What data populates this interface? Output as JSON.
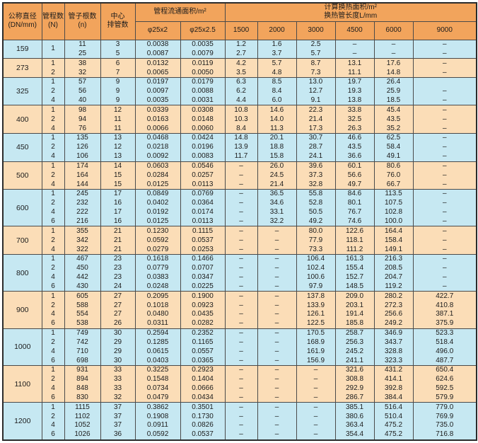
{
  "table": {
    "header": {
      "dn": "公称直径\n(DN/mm)",
      "passes": "管程数\n(N)",
      "tubes": "管子根数\n(n)",
      "center_rows": "中心\n排管数",
      "flow_area": "管程流通面积/m²",
      "d25x2": "φ25x2",
      "d25x2_5": "φ25x2.5",
      "heat_area": "计算换热面积/m²\n换热管长度L/mm",
      "lengths": [
        "1500",
        "2000",
        "3000",
        "4500",
        "6000",
        "9000"
      ]
    },
    "column_keys": [
      "tubes",
      "center-rows",
      "area-25x2",
      "area-25x2-5",
      "L1500",
      "L2000",
      "L3000",
      "L4500",
      "L6000",
      "L9000"
    ],
    "colors": {
      "header_bg": "#f2a45c",
      "row_blue": "#c6e8f2",
      "row_peach": "#fbddb7",
      "border": "#4a4a4a",
      "outer_border": "#2b2b2b"
    },
    "groups": [
      {
        "dn": "159",
        "rows": [
          {
            "pass": "1",
            "passRowspan": 2,
            "cells": [
              "11",
              "3",
              "0.0038",
              "0.0035",
              "1.2",
              "1.6",
              "2.5",
              "–",
              "–",
              "–"
            ]
          },
          {
            "pass": null,
            "cells": [
              "25",
              "5",
              "0.0087",
              "0.0079",
              "2.7",
              "3.7",
              "5.7",
              "–",
              "–",
              "–"
            ]
          }
        ]
      },
      {
        "dn": "273",
        "rows": [
          {
            "pass": "1",
            "cells": [
              "38",
              "6",
              "0.0132",
              "0.0119",
              "4.2",
              "5.7",
              "8.7",
              "13.1",
              "17.6",
              "–"
            ]
          },
          {
            "pass": "2",
            "cells": [
              "32",
              "7",
              "0.0065",
              "0.0050",
              "3.5",
              "4.8",
              "7.3",
              "11.1",
              "14.8",
              "–"
            ]
          }
        ]
      },
      {
        "dn": "325",
        "rows": [
          {
            "pass": "1",
            "cells": [
              "57",
              "9",
              "0.0197",
              "0.0179",
              "6.3",
              "8.5",
              "13.0",
              "19.7",
              "26.4",
              ""
            ]
          },
          {
            "pass": "2",
            "cells": [
              "56",
              "9",
              "0.0097",
              "0.0088",
              "6.2",
              "8.4",
              "12.7",
              "19.3",
              "25.9",
              "–"
            ]
          },
          {
            "pass": "4",
            "cells": [
              "40",
              "9",
              "0.0035",
              "0.0031",
              "4.4",
              "6.0",
              "9.1",
              "13.8",
              "18.5",
              "–"
            ]
          }
        ]
      },
      {
        "dn": "400",
        "rows": [
          {
            "pass": "1",
            "cells": [
              "98",
              "12",
              "0.0339",
              "0.0308",
              "10.8",
              "14.6",
              "22.3",
              "33.8",
              "45.4",
              "–"
            ]
          },
          {
            "pass": "2",
            "cells": [
              "94",
              "11",
              "0.0163",
              "0.0148",
              "10.3",
              "14.0",
              "21.4",
              "32.5",
              "43.5",
              "–"
            ]
          },
          {
            "pass": "4",
            "cells": [
              "76",
              "11",
              "0.0066",
              "0.0060",
              "8.4",
              "11.3",
              "17.3",
              "26.3",
              "35.2",
              "–"
            ]
          }
        ]
      },
      {
        "dn": "450",
        "rows": [
          {
            "pass": "1",
            "cells": [
              "135",
              "13",
              "0.0468",
              "0.0424",
              "14.8",
              "20.1",
              "30.7",
              "46.6",
              "62.5",
              "–"
            ]
          },
          {
            "pass": "2",
            "cells": [
              "126",
              "12",
              "0.0218",
              "0.0196",
              "13.9",
              "18.8",
              "28.7",
              "43.5",
              "58.4",
              "–"
            ]
          },
          {
            "pass": "4",
            "cells": [
              "106",
              "13",
              "0.0092",
              "0.0083",
              "11.7",
              "15.8",
              "24.1",
              "36.6",
              "49.1",
              "–"
            ]
          }
        ]
      },
      {
        "dn": "500",
        "rows": [
          {
            "pass": "1",
            "cells": [
              "174",
              "14",
              "0.0603",
              "0.0546",
              "–",
              "26.0",
              "39.6",
              "60.1",
              "80.6",
              "–"
            ]
          },
          {
            "pass": "2",
            "cells": [
              "164",
              "15",
              "0.0284",
              "0.0257",
              "–",
              "24.5",
              "37.3",
              "56.6",
              "76.0",
              "–"
            ]
          },
          {
            "pass": "4",
            "cells": [
              "144",
              "15",
              "0.0125",
              "0.0113",
              "–",
              "21.4",
              "32.8",
              "49.7",
              "66.7",
              "–"
            ]
          }
        ]
      },
      {
        "dn": "600",
        "rows": [
          {
            "pass": "1",
            "cells": [
              "245",
              "17",
              "0.0849",
              "0.0769",
              "–",
              "36.5",
              "55.8",
              "84.6",
              "113.5",
              "–"
            ]
          },
          {
            "pass": "2",
            "cells": [
              "232",
              "16",
              "0.0402",
              "0.0364",
              "–",
              "34.6",
              "52.8",
              "80.1",
              "107.5",
              "–"
            ]
          },
          {
            "pass": "4",
            "cells": [
              "222",
              "17",
              "0.0192",
              "0.0174",
              "–",
              "33.1",
              "50.5",
              "76.7",
              "102.8",
              "–"
            ]
          },
          {
            "pass": "6",
            "cells": [
              "216",
              "16",
              "0.0125",
              "0.0113",
              "–",
              "32.2",
              "49.2",
              "74.6",
              "100.0",
              "–"
            ]
          }
        ]
      },
      {
        "dn": "700",
        "rows": [
          {
            "pass": "1",
            "cells": [
              "355",
              "21",
              "0.1230",
              "0.1115",
              "–",
              "–",
              "80.0",
              "122.6",
              "164.4",
              "–"
            ]
          },
          {
            "pass": "2",
            "cells": [
              "342",
              "21",
              "0.0592",
              "0.0537",
              "–",
              "–",
              "77.9",
              "118.1",
              "158.4",
              "–"
            ]
          },
          {
            "pass": "4",
            "cells": [
              "322",
              "21",
              "0.0279",
              "0.0253",
              "–",
              "–",
              "73.3",
              "111.2",
              "149.1",
              "–"
            ]
          }
        ]
      },
      {
        "dn": "800",
        "rows": [
          {
            "pass": "1",
            "cells": [
              "467",
              "23",
              "0.1618",
              "0.1466",
              "–",
              "–",
              "106.4",
              "161.3",
              "216.3",
              "–"
            ]
          },
          {
            "pass": "2",
            "cells": [
              "450",
              "23",
              "0.0779",
              "0.0707",
              "–",
              "–",
              "102.4",
              "155.4",
              "208.5",
              "–"
            ]
          },
          {
            "pass": "4",
            "cells": [
              "442",
              "23",
              "0.0383",
              "0.0347",
              "–",
              "–",
              "100.6",
              "152.7",
              "204.7",
              "–"
            ]
          },
          {
            "pass": "6",
            "cells": [
              "430",
              "24",
              "0.0248",
              "0.0225",
              "–",
              "–",
              "97.9",
              "148.5",
              "119.2",
              "–"
            ]
          }
        ]
      },
      {
        "dn": "900",
        "rows": [
          {
            "pass": "1",
            "cells": [
              "605",
              "27",
              "0.2095",
              "0.1900",
              "–",
              "–",
              "137.8",
              "209.0",
              "280.2",
              "422.7"
            ]
          },
          {
            "pass": "2",
            "cells": [
              "588",
              "27",
              "0.1018",
              "0.0923",
              "–",
              "–",
              "133.9",
              "203.1",
              "272.3",
              "410.8"
            ]
          },
          {
            "pass": "4",
            "cells": [
              "554",
              "27",
              "0.0480",
              "0.0435",
              "–",
              "–",
              "126.1",
              "191.4",
              "256.6",
              "387.1"
            ]
          },
          {
            "pass": "6",
            "cells": [
              "538",
              "26",
              "0.0311",
              "0.0282",
              "–",
              "–",
              "122.5",
              "185.8",
              "249.2",
              "375.9"
            ]
          }
        ]
      },
      {
        "dn": "1000",
        "rows": [
          {
            "pass": "1",
            "cells": [
              "749",
              "30",
              "0.2594",
              "0.2352",
              "–",
              "–",
              "170.5",
              "258.7",
              "346.9",
              "523.3"
            ]
          },
          {
            "pass": "2",
            "cells": [
              "742",
              "29",
              "0.1285",
              "0.1165",
              "–",
              "–",
              "168.9",
              "256.3",
              "343.7",
              "518.4"
            ]
          },
          {
            "pass": "4",
            "cells": [
              "710",
              "29",
              "0.0615",
              "0.0557",
              "–",
              "–",
              "161.9",
              "245.2",
              "328.8",
              "496.0"
            ]
          },
          {
            "pass": "6",
            "cells": [
              "698",
              "30",
              "0.0403",
              "0.0365",
              "–",
              "–",
              "156.9",
              "241.1",
              "323.3",
              "487.7"
            ]
          }
        ]
      },
      {
        "dn": "1100",
        "rows": [
          {
            "pass": "1",
            "cells": [
              "931",
              "33",
              "0.3225",
              "0.2923",
              "–",
              "–",
              "–",
              "321.6",
              "431.2",
              "650.4"
            ]
          },
          {
            "pass": "2",
            "cells": [
              "894",
              "33",
              "0.1548",
              "0.1404",
              "–",
              "–",
              "–",
              "308.8",
              "414.1",
              "624.6"
            ]
          },
          {
            "pass": "4",
            "cells": [
              "848",
              "33",
              "0.0734",
              "0.0666",
              "–",
              "–",
              "–",
              "292.9",
              "392.8",
              "592.5"
            ]
          },
          {
            "pass": "6",
            "cells": [
              "830",
              "32",
              "0.0479",
              "0.0434",
              "–",
              "–",
              "–",
              "286.7",
              "384.4",
              "579.9"
            ]
          }
        ]
      },
      {
        "dn": "1200",
        "rows": [
          {
            "pass": "1",
            "cells": [
              "1115",
              "37",
              "0.3862",
              "0.3501",
              "–",
              "–",
              "–",
              "385.1",
              "516.4",
              "779.0"
            ]
          },
          {
            "pass": "2",
            "cells": [
              "1102",
              "37",
              "0.1908",
              "0.1730",
              "–",
              "–",
              "–",
              "380.6",
              "510.4",
              "769.9"
            ]
          },
          {
            "pass": "4",
            "cells": [
              "1052",
              "37",
              "0.0911",
              "0.0826",
              "–",
              "–",
              "–",
              "363.4",
              "475.2",
              "735.0"
            ]
          },
          {
            "pass": "6",
            "cells": [
              "1026",
              "36",
              "0.0592",
              "0.0537",
              "–",
              "–",
              "–",
              "354.4",
              "475.2",
              "716.8"
            ]
          }
        ]
      }
    ]
  }
}
